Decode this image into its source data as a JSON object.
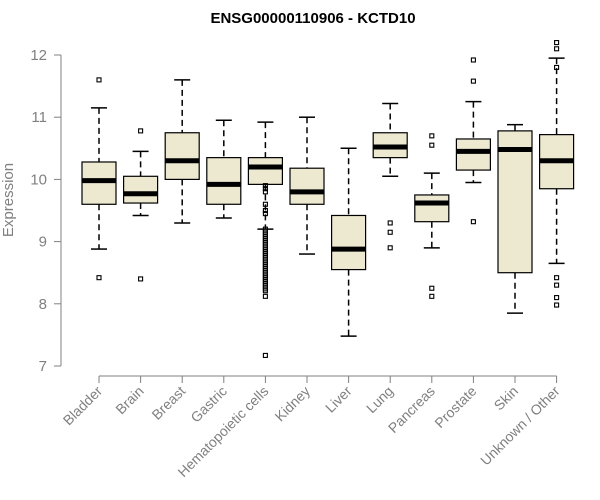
{
  "chart_data": {
    "type": "boxplot",
    "title": "ENSG00000110906 - KCTD10",
    "ylabel": "Expression",
    "xlabel": "",
    "ylim": [
      7,
      12.2
    ],
    "yticks": [
      7,
      8,
      9,
      10,
      11,
      12
    ],
    "box_fill": "#ede8d0",
    "axis_color": "#808080",
    "categories": [
      "Bladder",
      "Brain",
      "Breast",
      "Gastric",
      "Hematopoietic cells",
      "Kidney",
      "Liver",
      "Lung",
      "Pancreas",
      "Prostate",
      "Skin",
      "Unknown / Other"
    ],
    "boxes": [
      {
        "category": "Bladder",
        "whisker_low": 8.88,
        "q1": 9.6,
        "median": 9.98,
        "q3": 10.28,
        "whisker_high": 11.15,
        "outliers": [
          11.6,
          8.42
        ]
      },
      {
        "category": "Brain",
        "whisker_low": 9.42,
        "q1": 9.62,
        "median": 9.77,
        "q3": 10.05,
        "whisker_high": 10.45,
        "outliers": [
          10.78,
          8.4
        ]
      },
      {
        "category": "Breast",
        "whisker_low": 9.3,
        "q1": 10.0,
        "median": 10.3,
        "q3": 10.75,
        "whisker_high": 11.6,
        "outliers": []
      },
      {
        "category": "Gastric",
        "whisker_low": 9.38,
        "q1": 9.6,
        "median": 9.92,
        "q3": 10.35,
        "whisker_high": 10.95,
        "outliers": []
      },
      {
        "category": "Hematopoietic cells",
        "whisker_low": 9.2,
        "q1": 9.92,
        "median": 10.2,
        "q3": 10.35,
        "whisker_high": 10.92,
        "outliers": [
          9.9,
          9.85,
          9.8,
          9.6,
          9.5,
          9.45,
          9.2,
          9.17,
          9.14,
          9.11,
          9.08,
          9.05,
          9.02,
          8.99,
          8.96,
          8.93,
          8.9,
          8.87,
          8.84,
          8.81,
          8.78,
          8.75,
          8.72,
          8.69,
          8.66,
          8.63,
          8.6,
          8.57,
          8.54,
          8.51,
          8.48,
          8.45,
          8.42,
          8.39,
          8.36,
          8.33,
          8.3,
          8.27,
          8.24,
          8.21,
          8.12,
          7.17
        ]
      },
      {
        "category": "Kidney",
        "whisker_low": 8.8,
        "q1": 9.6,
        "median": 9.8,
        "q3": 10.18,
        "whisker_high": 11.0,
        "outliers": []
      },
      {
        "category": "Liver",
        "whisker_low": 7.48,
        "q1": 8.55,
        "median": 8.88,
        "q3": 9.42,
        "whisker_high": 10.5,
        "outliers": []
      },
      {
        "category": "Lung",
        "whisker_low": 10.05,
        "q1": 10.35,
        "median": 10.52,
        "q3": 10.75,
        "whisker_high": 11.22,
        "outliers": [
          9.3,
          9.15,
          8.9
        ]
      },
      {
        "category": "Pancreas",
        "whisker_low": 8.9,
        "q1": 9.32,
        "median": 9.62,
        "q3": 9.75,
        "whisker_high": 10.1,
        "outliers": [
          10.7,
          10.55,
          8.25,
          8.12
        ]
      },
      {
        "category": "Prostate",
        "whisker_low": 9.95,
        "q1": 10.15,
        "median": 10.45,
        "q3": 10.65,
        "whisker_high": 11.25,
        "outliers": [
          11.92,
          11.58,
          9.32
        ]
      },
      {
        "category": "Skin",
        "whisker_low": 7.85,
        "q1": 8.5,
        "median": 10.48,
        "q3": 10.78,
        "whisker_high": 10.88,
        "outliers": []
      },
      {
        "category": "Unknown / Other",
        "whisker_low": 8.65,
        "q1": 9.85,
        "median": 10.3,
        "q3": 10.72,
        "whisker_high": 11.95,
        "outliers": [
          12.2,
          12.1,
          11.8,
          8.42,
          8.3,
          8.1,
          7.98
        ]
      }
    ]
  }
}
